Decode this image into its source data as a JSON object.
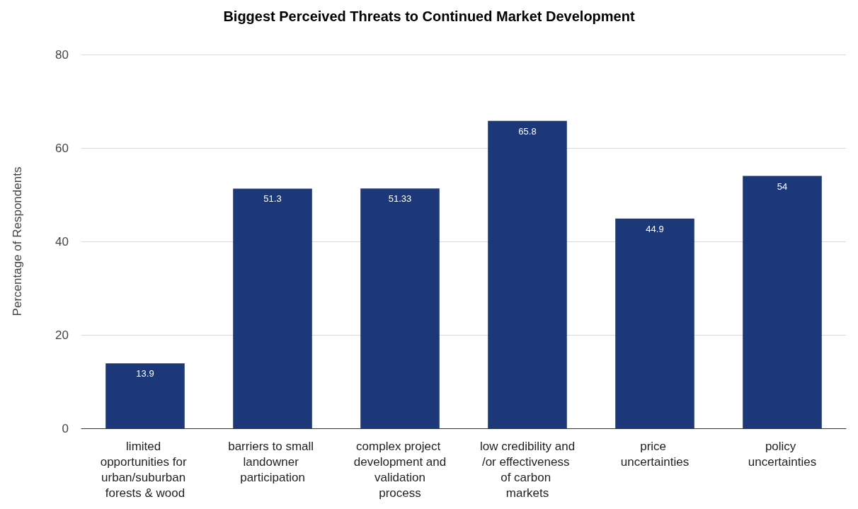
{
  "chart_data": {
    "type": "bar",
    "title": "Biggest Perceived Threats to Continued Market Development",
    "ylabel": "Percentage of Respondents",
    "categories": [
      "limited opportunities for urban/suburban forests & wood",
      "barriers to small landowner participation",
      "complex project development and validation process",
      "low credibility and/or effectiveness of carbon markets",
      "price uncertainties",
      "policy uncertainties"
    ],
    "values": [
      13.9,
      51.3,
      51.33,
      65.8,
      44.9,
      54
    ],
    "color": "#1c3879",
    "ylim": [
      0,
      80
    ],
    "yticks": [
      0,
      20,
      40,
      60,
      80
    ],
    "grid": "y",
    "data_labels": true
  }
}
